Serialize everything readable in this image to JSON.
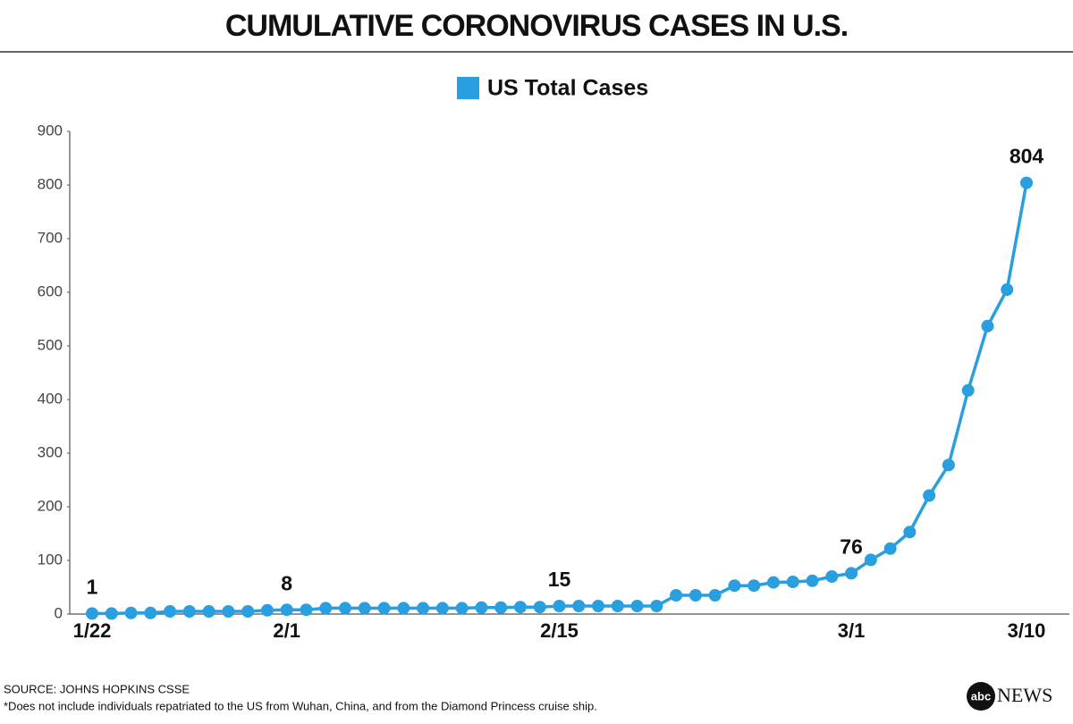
{
  "chart_data": {
    "type": "line",
    "title": "CUMULATIVE CORONOVIRUS CASES IN U.S.",
    "categories": [
      "1/22",
      null,
      null,
      null,
      null,
      null,
      null,
      null,
      null,
      null,
      "2/1",
      null,
      null,
      null,
      null,
      null,
      null,
      null,
      null,
      null,
      null,
      null,
      null,
      null,
      "2/15",
      null,
      null,
      null,
      null,
      null,
      null,
      null,
      null,
      null,
      null,
      null,
      null,
      null,
      null,
      "3/1",
      null,
      null,
      null,
      null,
      null,
      null,
      null,
      null,
      "3/10"
    ],
    "series": [
      {
        "name": "US Total Cases",
        "color": "#2a9fdf",
        "values": [
          1,
          1,
          2,
          2,
          5,
          5,
          5,
          5,
          5,
          7,
          8,
          8,
          11,
          11,
          11,
          11,
          11,
          11,
          11,
          11,
          12,
          12,
          13,
          13,
          15,
          15,
          15,
          15,
          15,
          15,
          35,
          35,
          35,
          53,
          53,
          59,
          60,
          62,
          70,
          76,
          101,
          122,
          153,
          221,
          278,
          417,
          537,
          605,
          804
        ],
        "value_labels": [
          "1",
          null,
          null,
          null,
          null,
          null,
          null,
          null,
          null,
          null,
          "8",
          null,
          null,
          null,
          null,
          null,
          null,
          null,
          null,
          null,
          null,
          null,
          null,
          null,
          "15",
          null,
          null,
          null,
          null,
          null,
          null,
          null,
          null,
          null,
          null,
          null,
          null,
          null,
          null,
          "76",
          null,
          null,
          null,
          null,
          null,
          null,
          null,
          null,
          "804"
        ]
      }
    ],
    "ylim": [
      0,
      900
    ],
    "yticks": [
      0,
      100,
      200,
      300,
      400,
      500,
      600,
      700,
      800,
      900
    ],
    "legend": "top",
    "source": "SOURCE: JOHNS HOPKINS CSSE",
    "note": "*Does not include individuals repatriated to the US from Wuhan, China, and from the Diamond Princess cruise ship.",
    "brand": {
      "mark": "abc",
      "text": "NEWS"
    }
  }
}
